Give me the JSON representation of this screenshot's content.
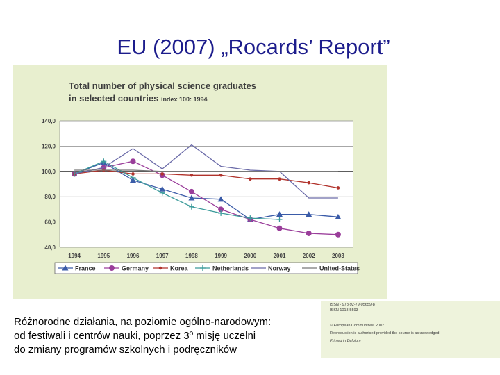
{
  "slide": {
    "title": "EU (2007) „Rocards’ Report”",
    "caption_lines": [
      "Różnorodne działania, na poziomie ogólno-narodowym:",
      "od festiwali i centrów nauki, poprzez 3º misję uczelni",
      "do zmiany programów szkolnych i podręczników"
    ],
    "imprint_lines": [
      "ISSN - 978-92-79-05659-8",
      "ISSN 1018-5593",
      "© European Communities, 2007",
      "Reproduction is authorised provided the source is acknowledged.",
      "Printed in Belgium"
    ]
  },
  "colors": {
    "title": "#1c1c8c",
    "panel_bg": "#e8efcf",
    "plot_bg": "#ffffff",
    "title_text": "#3c3c3c"
  },
  "chart_data": {
    "type": "line",
    "title_lines": [
      "Total number of physical science graduates",
      "in selected countries"
    ],
    "subtitle": "index 100: 1994",
    "x": [
      "1994",
      "1995",
      "1996",
      "1997",
      "1998",
      "1999",
      "2000",
      "2001",
      "2002",
      "2003"
    ],
    "ylim": [
      40,
      140
    ],
    "yticks": [
      "40,0",
      "60,0",
      "80,0",
      "100,0",
      "120,0",
      "140,0"
    ],
    "ytick_values": [
      40,
      60,
      80,
      100,
      120,
      140
    ],
    "grid": "horizontal",
    "legend_position": "bottom",
    "series": [
      {
        "name": "France",
        "color": "#3a5ba8",
        "marker": "triangle",
        "values": [
          98,
          107,
          93,
          86,
          79,
          78,
          62,
          66,
          66,
          64
        ]
      },
      {
        "name": "Germany",
        "color": "#9a3d9a",
        "marker": "circle",
        "values": [
          98,
          103,
          108,
          97,
          84,
          70,
          62,
          55,
          51,
          50
        ]
      },
      {
        "name": "Korea",
        "color": "#b1332c",
        "marker": "dot",
        "values": [
          98,
          101,
          98,
          98,
          97,
          97,
          94,
          94,
          91,
          87
        ]
      },
      {
        "name": "Netherlands",
        "color": "#3a9a9a",
        "marker": "plus",
        "values": [
          98,
          108,
          95,
          83,
          72,
          67,
          63,
          62,
          null,
          null
        ]
      },
      {
        "name": "Norway",
        "color": "#6a6aa8",
        "marker": "none",
        "values": [
          98,
          103,
          118,
          102,
          121,
          104,
          101,
          100,
          79,
          79
        ]
      },
      {
        "name": "United-States",
        "color": "#777777",
        "marker": "none",
        "values": [
          101,
          101,
          101,
          100,
          100,
          100,
          100,
          100,
          100,
          100
        ]
      }
    ]
  }
}
